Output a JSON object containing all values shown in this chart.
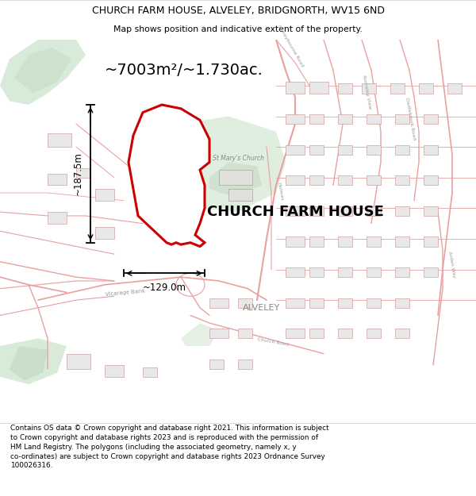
{
  "title_line1": "CHURCH FARM HOUSE, ALVELEY, BRIDGNORTH, WV15 6ND",
  "title_line2": "Map shows position and indicative extent of the property.",
  "area_label": "~7003m²/~1.730ac.",
  "property_label": "CHURCH FARM HOUSE",
  "village_label": "ALVELEY",
  "church_label": "St Mary's Church",
  "dim_horizontal": "~129.0m",
  "dim_vertical": "~187.5m",
  "footer_text": "Contains OS data © Crown copyright and database right 2021. This information is subject\nto Crown copyright and database rights 2023 and is reproduced with the permission of\nHM Land Registry. The polygons (including the associated geometry, namely x, y\nco-ordinates) are subject to Crown copyright and database rights 2023 Ordnance Survey\n100026316.",
  "map_bg": "#ffffff",
  "plot_fill": "#ffffff",
  "plot_outline": "#cc0000",
  "road_color": "#e8a0a0",
  "road_fill": "#f5e8e8",
  "green_color": "#d8ead8",
  "green_dark": "#c5d9c5",
  "title_bg": "#ffffff",
  "footer_bg": "#ffffff",
  "building_fill": "#e8e8e8",
  "building_edge": "#d0a0a0"
}
